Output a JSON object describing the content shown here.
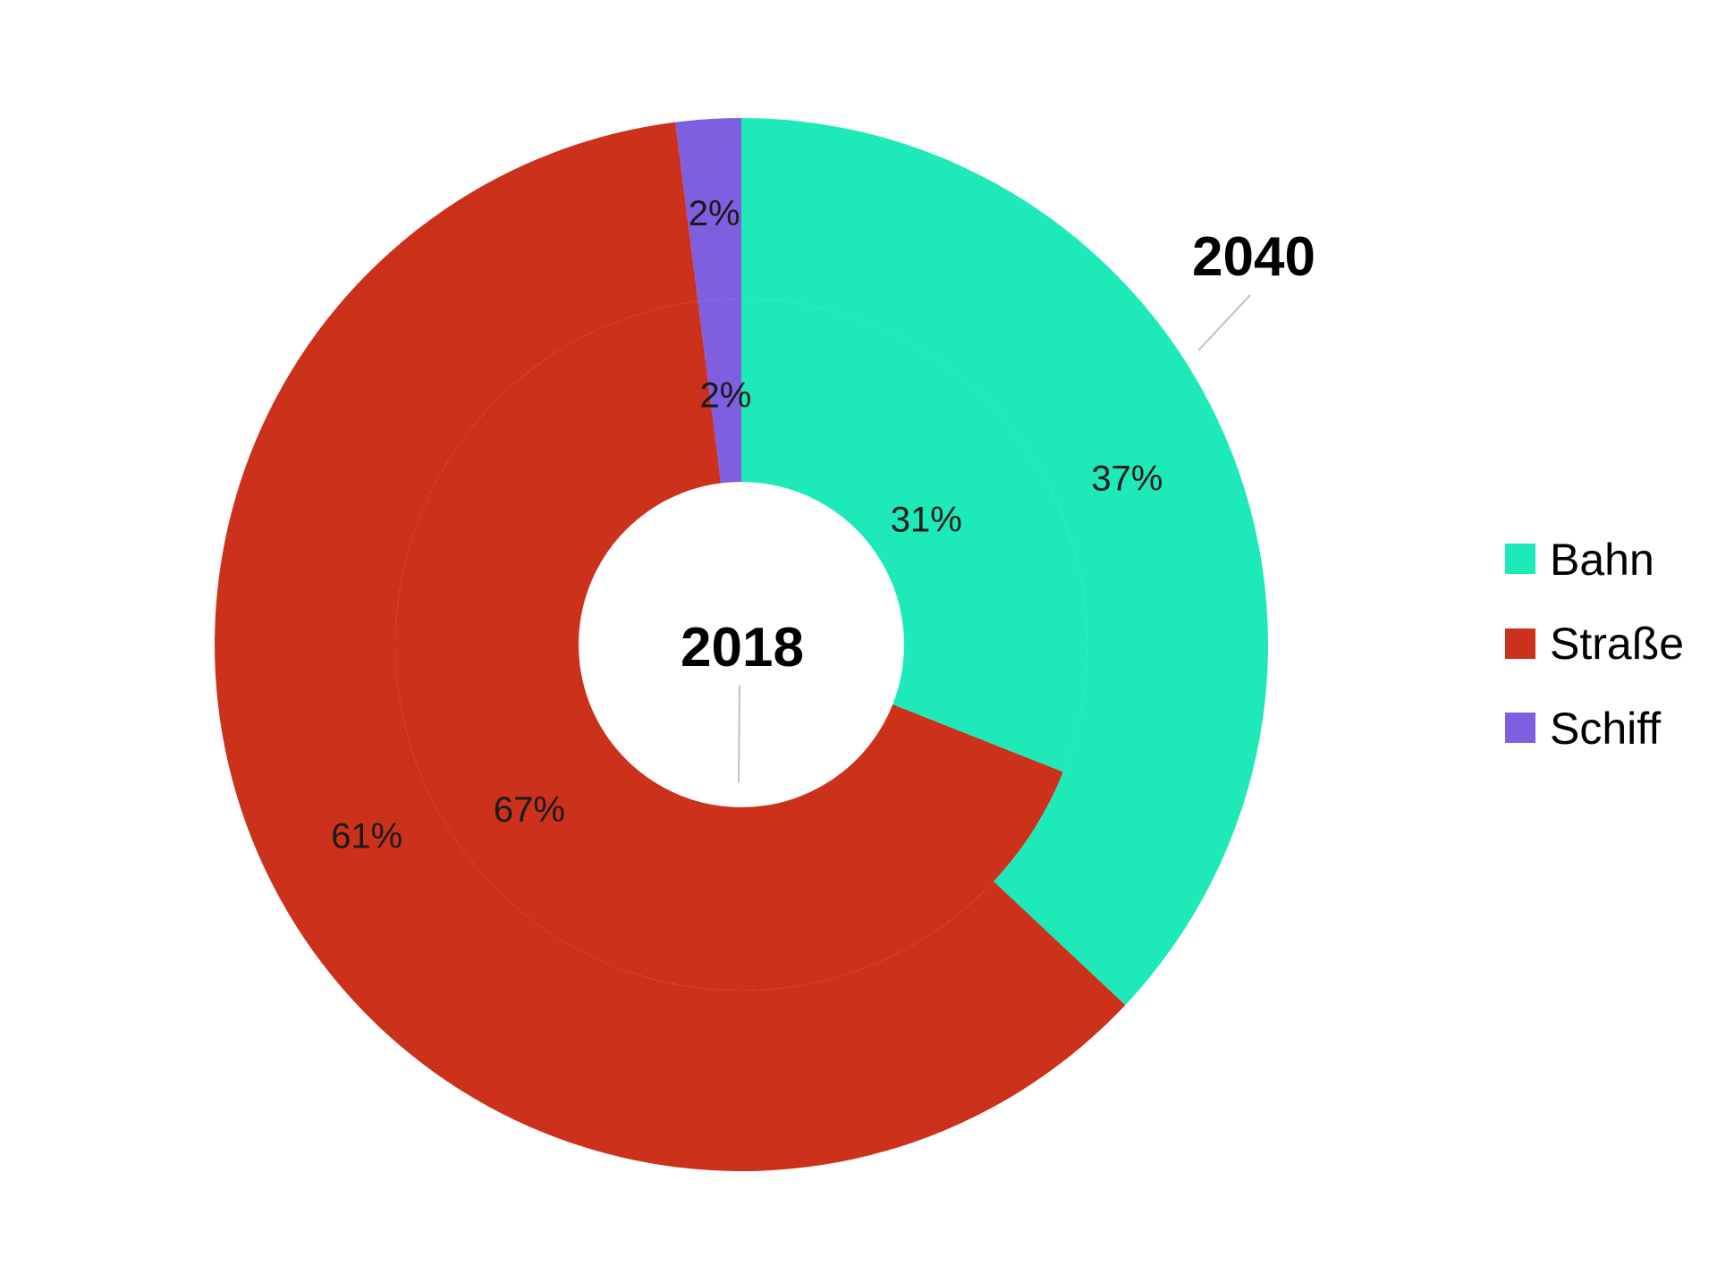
{
  "chart_data": {
    "type": "pie",
    "subtype": "nested-donut",
    "categories": [
      "Bahn",
      "Straße",
      "Schiff"
    ],
    "colors": {
      "Bahn": "#1DEAB8",
      "Straße": "#CC311C",
      "Schiff": "#7F5EE0"
    },
    "series": [
      {
        "name": "2018",
        "ring": "inner",
        "values": [
          31,
          67,
          2
        ],
        "labels": [
          "31%",
          "67%",
          "2%"
        ]
      },
      {
        "name": "2040",
        "ring": "outer",
        "values": [
          37,
          61,
          2
        ],
        "labels": [
          "37%",
          "61%",
          "2%"
        ]
      }
    ],
    "legend": {
      "position": "right",
      "entries": [
        "Bahn",
        "Straße",
        "Schiff"
      ]
    }
  },
  "annotations": {
    "inner_year": "2018",
    "outer_year": "2040"
  }
}
